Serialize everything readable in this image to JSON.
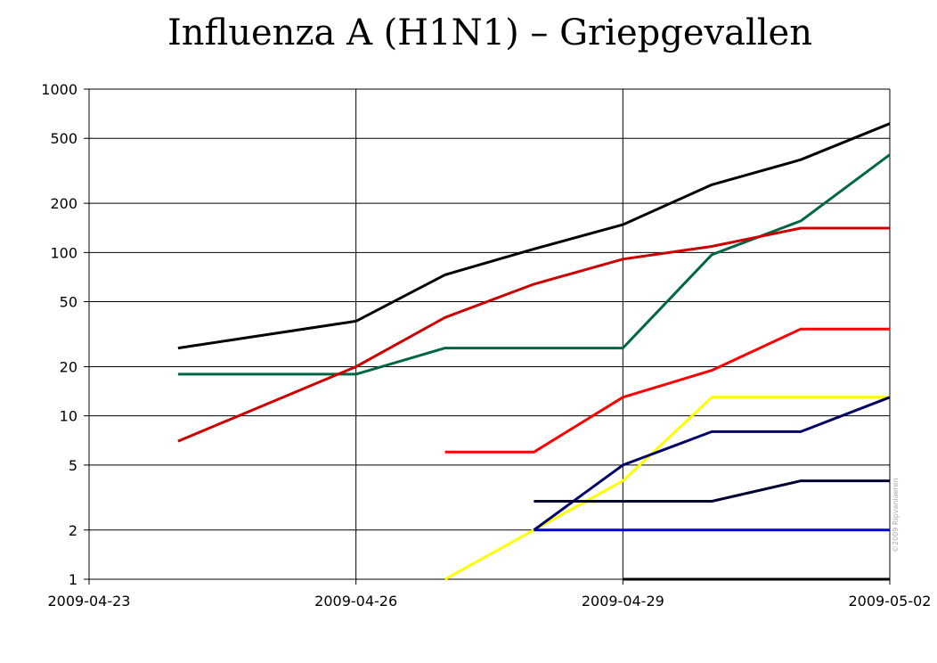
{
  "chart_data": {
    "type": "line",
    "title": "Influenza A (H1N1) – Griepgevallen",
    "y_scale": "log",
    "ylim": [
      1,
      1000
    ],
    "y_ticks": [
      1,
      2,
      5,
      10,
      20,
      50,
      100,
      200,
      500,
      1000
    ],
    "y_tick_labels": [
      "1",
      "2",
      "5",
      "10",
      "20",
      "50",
      "100",
      "200",
      "500",
      "1000"
    ],
    "xlim": [
      "2009-04-23",
      "2009-05-02"
    ],
    "x_ticks": [
      "2009-04-23",
      "2009-04-26",
      "2009-04-29",
      "2009-05-02"
    ],
    "grid": true,
    "credit": "©2009 Ripvanlaeren",
    "series": [
      {
        "color": "#000000",
        "x": [
          "2009-04-24",
          "2009-04-26",
          "2009-04-27",
          "2009-04-28",
          "2009-04-29",
          "2009-04-30",
          "2009-05-01",
          "2009-05-02"
        ],
        "values": [
          26,
          38,
          73,
          105,
          148,
          260,
          370,
          615
        ]
      },
      {
        "color": "#006644",
        "x": [
          "2009-04-24",
          "2009-04-26",
          "2009-04-27",
          "2009-04-28",
          "2009-04-29",
          "2009-04-30",
          "2009-05-01",
          "2009-05-02"
        ],
        "values": [
          18,
          18,
          26,
          26,
          26,
          97,
          156,
          397
        ]
      },
      {
        "color": "#cc0000",
        "x": [
          "2009-04-24",
          "2009-04-26",
          "2009-04-27",
          "2009-04-28",
          "2009-04-29",
          "2009-04-30",
          "2009-05-01",
          "2009-05-02"
        ],
        "values": [
          7,
          20,
          40,
          64,
          91,
          109,
          141,
          141
        ]
      },
      {
        "color": "#ff0000",
        "x": [
          "2009-04-27",
          "2009-04-28",
          "2009-04-29",
          "2009-04-30",
          "2009-05-01",
          "2009-05-02"
        ],
        "values": [
          6,
          6,
          13,
          19,
          34,
          34
        ]
      },
      {
        "color": "#ffff00",
        "x": [
          "2009-04-27",
          "2009-04-28",
          "2009-04-29",
          "2009-04-30",
          "2009-05-01",
          "2009-05-02"
        ],
        "values": [
          1,
          2,
          4,
          13,
          13,
          13
        ]
      },
      {
        "color": "#000066",
        "x": [
          "2009-04-28",
          "2009-04-29",
          "2009-04-30",
          "2009-05-01",
          "2009-05-02"
        ],
        "values": [
          2,
          5,
          8,
          8,
          13
        ]
      },
      {
        "color": "#000033",
        "x": [
          "2009-04-28",
          "2009-04-29",
          "2009-04-30",
          "2009-05-01",
          "2009-05-02"
        ],
        "values": [
          3,
          3,
          3,
          4,
          4
        ]
      },
      {
        "color": "#0000cc",
        "x": [
          "2009-04-28",
          "2009-04-29",
          "2009-04-30",
          "2009-05-01",
          "2009-05-02"
        ],
        "values": [
          2,
          2,
          2,
          2,
          2
        ]
      },
      {
        "color": "#000000",
        "x": [
          "2009-04-29",
          "2009-04-30",
          "2009-05-01",
          "2009-05-02"
        ],
        "values": [
          1,
          1,
          1,
          1
        ]
      }
    ]
  }
}
